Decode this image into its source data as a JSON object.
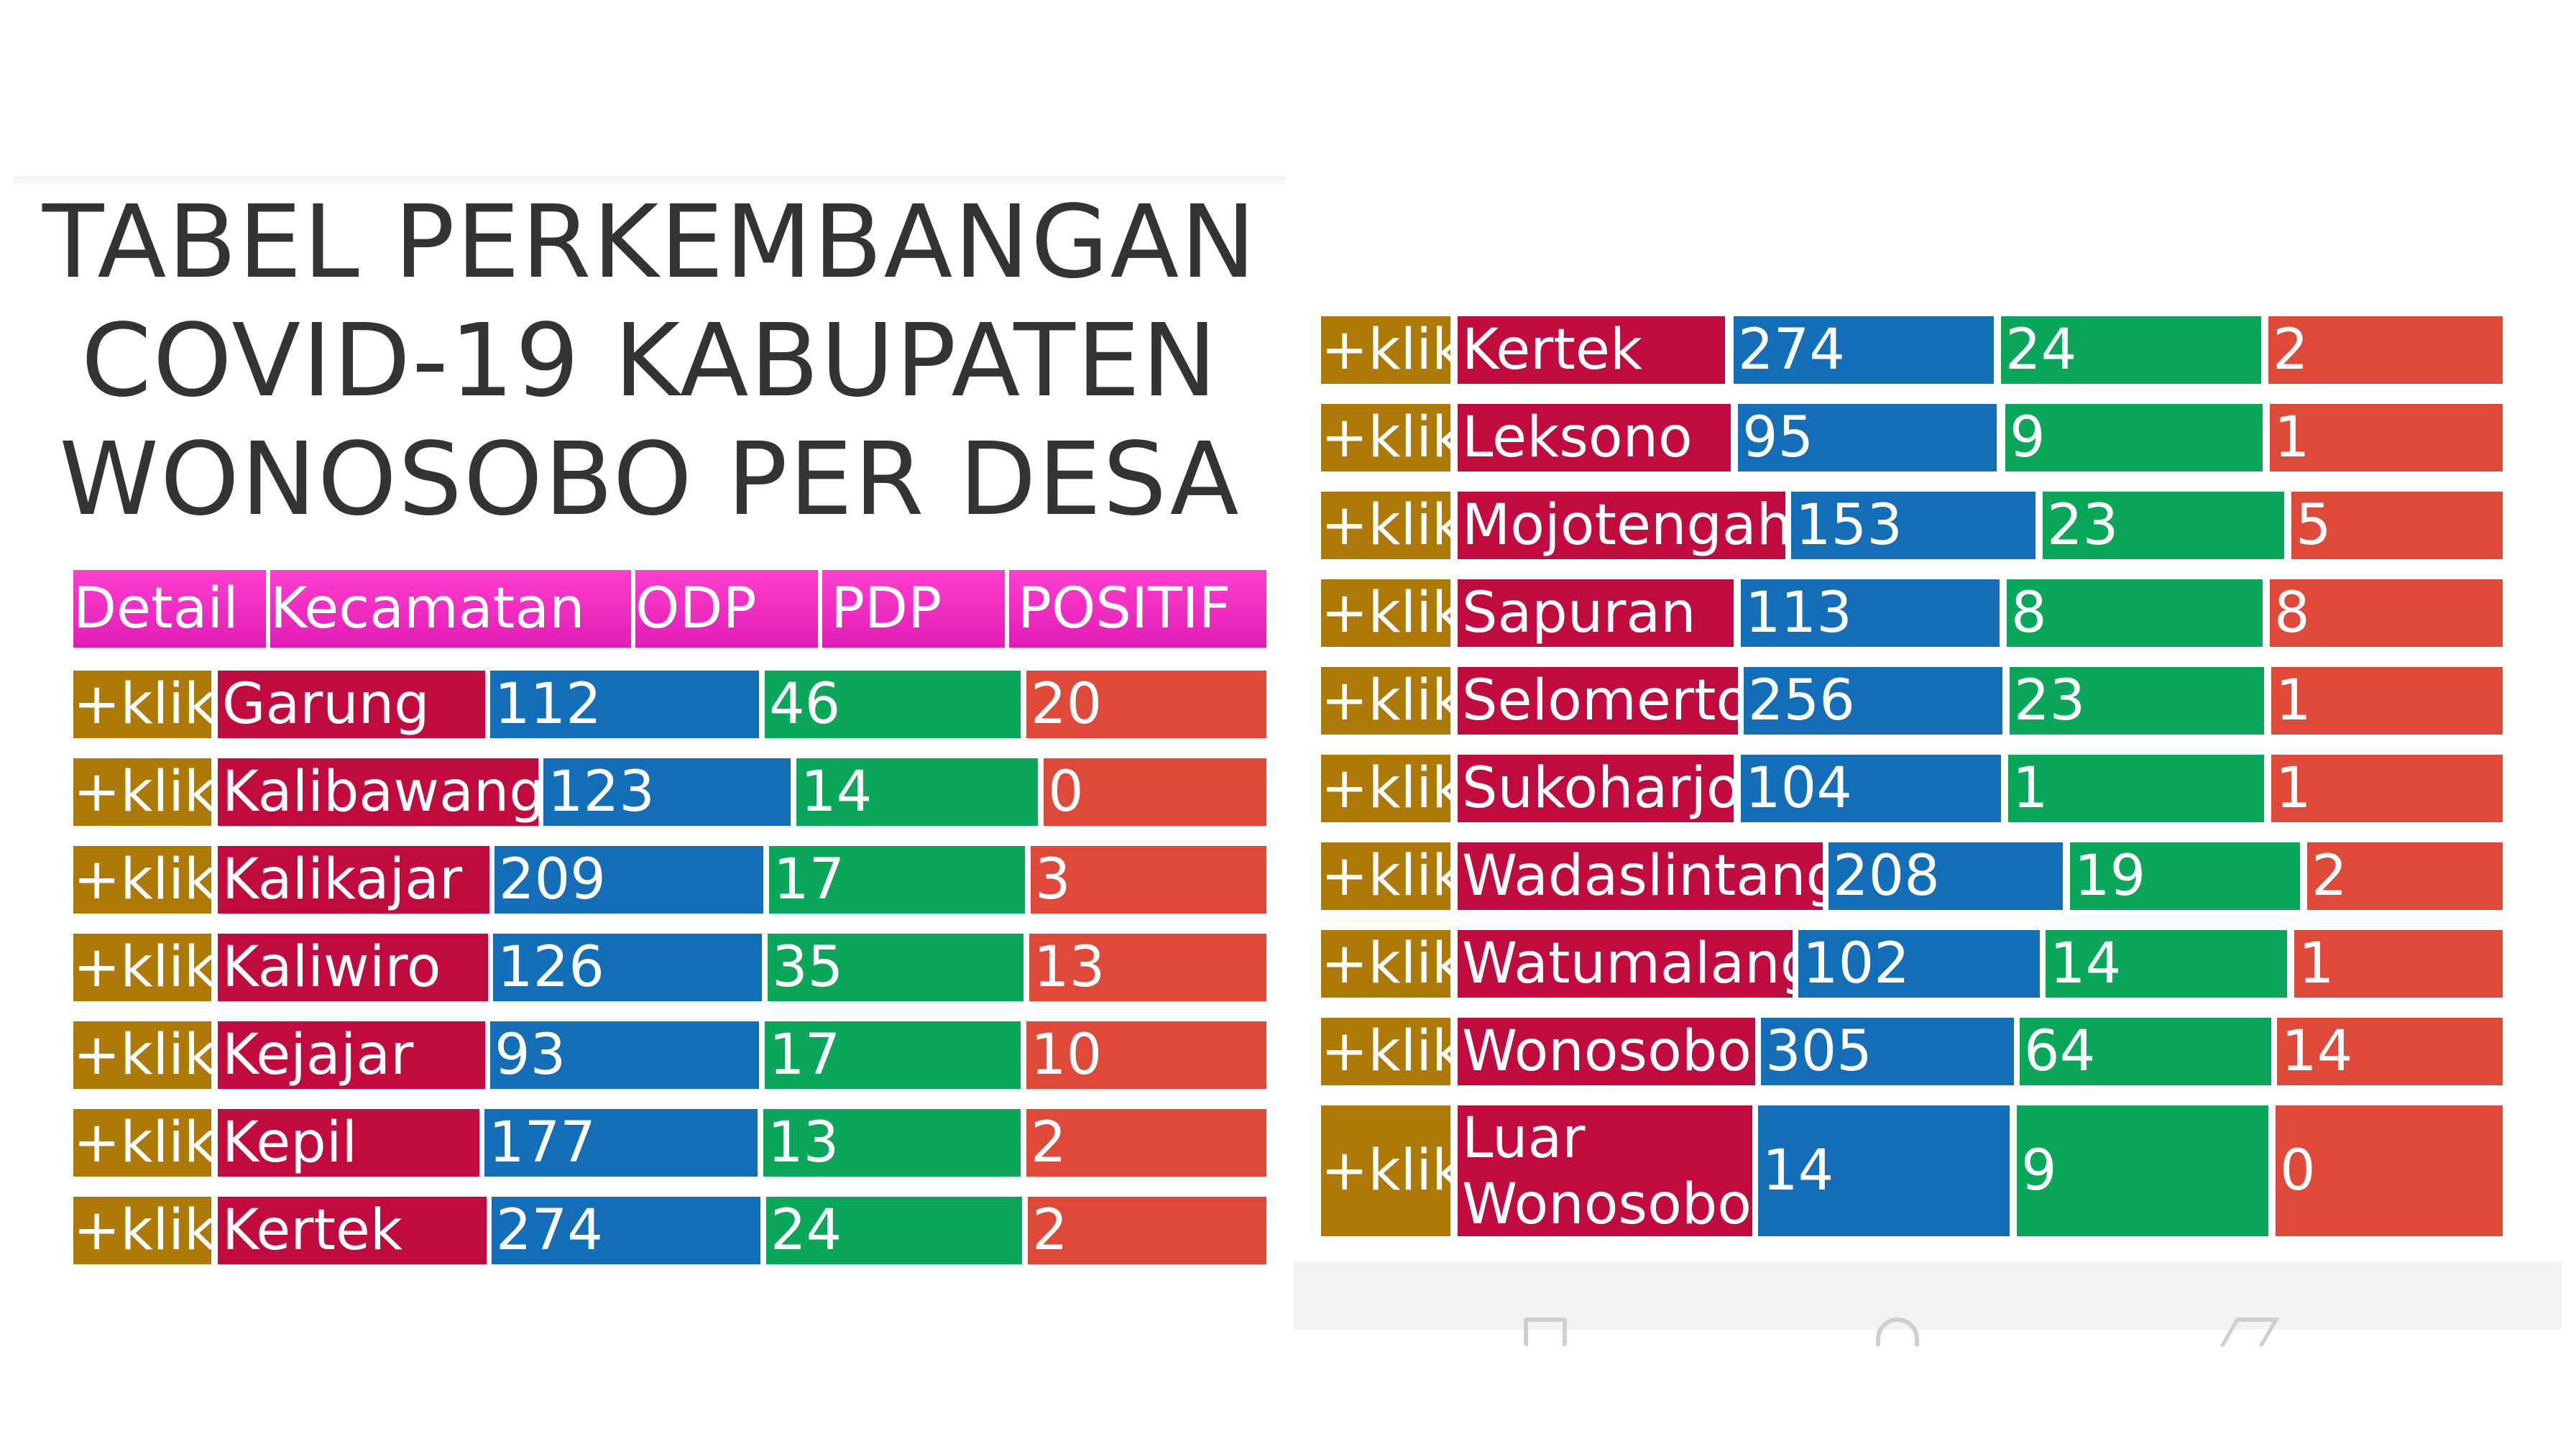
{
  "title_lines": [
    "TABEL PERKEMBANGAN",
    "COVID-19 KABUPATEN",
    "WONOSOBO PER DESA"
  ],
  "header": {
    "detail": "Detail",
    "kecamatan": "Kecamatan",
    "odp": "ODP",
    "pdp": "PDP",
    "positif": "POSITIF"
  },
  "left_rows": [
    {
      "klik": "+klik",
      "kecamatan": "Garung",
      "odp": "112",
      "pdp": "46",
      "positif": "20"
    },
    {
      "klik": "+klik",
      "kecamatan": "Kalibawang",
      "odp": "123",
      "pdp": "14",
      "positif": "0"
    },
    {
      "klik": "+klik",
      "kecamatan": "Kalikajar",
      "odp": "209",
      "pdp": "17",
      "positif": "3"
    },
    {
      "klik": "+klik",
      "kecamatan": "Kaliwiro",
      "odp": "126",
      "pdp": "35",
      "positif": "13"
    },
    {
      "klik": "+klik",
      "kecamatan": "Kejajar",
      "odp": "93",
      "pdp": "17",
      "positif": "10"
    },
    {
      "klik": "+klik",
      "kecamatan": "Kepil",
      "odp": "177",
      "pdp": "13",
      "positif": "2"
    },
    {
      "klik": "+klik",
      "kecamatan": "Kertek",
      "odp": "274",
      "pdp": "24",
      "positif": "2"
    }
  ],
  "right_rows": [
    {
      "klik": "+klik",
      "kecamatan": "Kertek",
      "odp": "274",
      "pdp": "24",
      "positif": "2"
    },
    {
      "klik": "+klik",
      "kecamatan": "Leksono",
      "odp": "95",
      "pdp": "9",
      "positif": "1"
    },
    {
      "klik": "+klik",
      "kecamatan": "Mojotengah",
      "odp": "153",
      "pdp": "23",
      "positif": "5"
    },
    {
      "klik": "+klik",
      "kecamatan": "Sapuran",
      "odp": "113",
      "pdp": "8",
      "positif": "8"
    },
    {
      "klik": "+klik",
      "kecamatan": "Selomerto",
      "odp": "256",
      "pdp": "23",
      "positif": "1"
    },
    {
      "klik": "+klik",
      "kecamatan": "Sukoharjo",
      "odp": "104",
      "pdp": "1",
      "positif": "1"
    },
    {
      "klik": "+klik",
      "kecamatan": "Wadaslintang",
      "odp": "208",
      "pdp": "19",
      "positif": "2"
    },
    {
      "klik": "+klik",
      "kecamatan": "Watumalang",
      "odp": "102",
      "pdp": "14",
      "positif": "1"
    },
    {
      "klik": "+klik",
      "kecamatan": "Wonosobo",
      "odp": "305",
      "pdp": "64",
      "positif": "14"
    },
    {
      "klik": "+klik",
      "kecamatan_line1": "Luar",
      "kecamatan_line2": "Wonosobo",
      "odp": "14",
      "pdp": "9",
      "positif": "0"
    }
  ],
  "colors": {
    "klik": "#ad7a07",
    "kecamatan": "#c00b3f",
    "odp": "#136eb7",
    "pdp": "#0aa65a",
    "positif": "#de4939",
    "header": "#e01db5"
  }
}
